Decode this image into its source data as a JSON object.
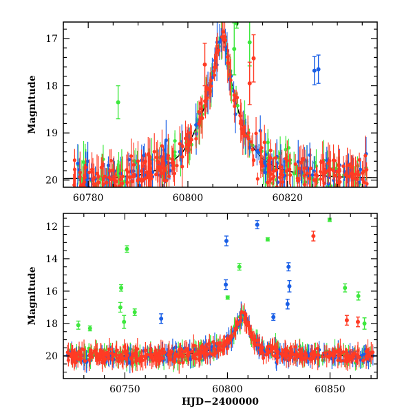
{
  "chart_data": [
    {
      "type": "scatter",
      "panel": "top",
      "title": "",
      "xlabel": "",
      "ylabel": "Magnitude",
      "xlim": [
        60775,
        60838
      ],
      "ylim": [
        20.15,
        16.65
      ],
      "y_inverted": true,
      "x_ticks": [
        60780,
        60800,
        60820
      ],
      "y_ticks": [
        17,
        18,
        19,
        20
      ],
      "grid": false,
      "legend": "none",
      "series": [
        {
          "color": "#1a5fe6",
          "style": "points-with-errorbars"
        },
        {
          "color": "#3ee83e",
          "style": "points-with-errorbars"
        },
        {
          "color": "#ff3b24",
          "style": "points-with-errorbars"
        },
        {
          "color": "#000000",
          "style": "line"
        }
      ],
      "model_curve": {
        "x": [
          60775,
          60780,
          60785,
          60790,
          60794,
          60797,
          60799,
          60801,
          60803,
          60804.5,
          60805.5,
          60806.2,
          60806.7,
          60807.4,
          60808.3,
          60809.5,
          60811,
          60813,
          60815,
          60818,
          60823,
          60830,
          60838
        ],
        "y": [
          19.97,
          19.96,
          19.95,
          19.9,
          19.78,
          19.6,
          19.4,
          19.05,
          18.55,
          18.0,
          17.55,
          17.15,
          16.9,
          17.1,
          17.7,
          18.3,
          18.85,
          19.3,
          19.55,
          19.75,
          19.88,
          19.93,
          19.95
        ]
      },
      "outliers": [
        {
          "series": 0,
          "x": 60825.4,
          "y": 17.68,
          "err": 0.3
        },
        {
          "series": 0,
          "x": 60826.2,
          "y": 17.65,
          "err": 0.3
        },
        {
          "series": 1,
          "x": 60809.3,
          "y": 17.22,
          "err": 0.55
        },
        {
          "series": 1,
          "x": 60812.4,
          "y": 17.08,
          "err": 0.5
        },
        {
          "series": 1,
          "x": 60809.8,
          "y": 16.68,
          "err": 0.1
        },
        {
          "series": 1,
          "x": 60786.0,
          "y": 18.35,
          "err": 0.35
        },
        {
          "series": 2,
          "x": 60803.4,
          "y": 17.55,
          "err": 0.45
        },
        {
          "series": 2,
          "x": 60813.2,
          "y": 17.42,
          "err": 0.5
        },
        {
          "series": 2,
          "x": 60812.4,
          "y": 17.95,
          "err": 0.45
        }
      ]
    },
    {
      "type": "scatter",
      "panel": "bottom",
      "title": "",
      "xlabel": "HJD−2400000",
      "ylabel": "Magnitude",
      "xlim": [
        60720,
        60873
      ],
      "ylim": [
        21.4,
        11.2
      ],
      "y_inverted": true,
      "x_ticks": [
        60750,
        60800,
        60850
      ],
      "y_ticks": [
        12,
        14,
        16,
        18,
        20
      ],
      "grid": false,
      "legend": "none",
      "series": [
        {
          "color": "#1a5fe6",
          "style": "points-with-errorbars"
        },
        {
          "color": "#3ee83e",
          "style": "points-with-errorbars"
        },
        {
          "color": "#ff3b24",
          "style": "points-with-errorbars"
        },
        {
          "color": "#000000",
          "style": "line"
        }
      ],
      "model_curve": {
        "x": [
          60720,
          60760,
          60780,
          60790,
          60797,
          60801,
          60804,
          60806,
          60807.5,
          60809,
          60811,
          60814,
          60818,
          60825,
          60840,
          60873
        ],
        "y": [
          20.0,
          20.0,
          19.9,
          19.7,
          19.4,
          19.0,
          18.4,
          17.8,
          17.4,
          17.8,
          18.5,
          19.2,
          19.6,
          19.85,
          19.95,
          20.0
        ]
      },
      "outliers": [
        {
          "series": 0,
          "x": 60799.5,
          "y": 12.9,
          "err": 0.3
        },
        {
          "series": 0,
          "x": 60814.5,
          "y": 11.9,
          "err": 0.25
        },
        {
          "series": 0,
          "x": 60799.2,
          "y": 15.6,
          "err": 0.3
        },
        {
          "series": 0,
          "x": 60829.8,
          "y": 14.5,
          "err": 0.25
        },
        {
          "series": 0,
          "x": 60830.2,
          "y": 15.7,
          "err": 0.35
        },
        {
          "series": 0,
          "x": 60822.4,
          "y": 17.6,
          "err": 0.2
        },
        {
          "series": 0,
          "x": 60767.7,
          "y": 17.7,
          "err": 0.3
        },
        {
          "series": 0,
          "x": 60829.3,
          "y": 16.8,
          "err": 0.3
        },
        {
          "series": 1,
          "x": 60751.0,
          "y": 13.4,
          "err": 0.2
        },
        {
          "series": 1,
          "x": 60748.2,
          "y": 15.8,
          "err": 0.2
        },
        {
          "series": 1,
          "x": 60805.8,
          "y": 14.5,
          "err": 0.2
        },
        {
          "series": 1,
          "x": 60819.6,
          "y": 12.8,
          "err": 0.1
        },
        {
          "series": 1,
          "x": 60849.8,
          "y": 11.6,
          "err": 0.1
        },
        {
          "series": 1,
          "x": 60857.3,
          "y": 15.8,
          "err": 0.25
        },
        {
          "series": 1,
          "x": 60863.8,
          "y": 16.3,
          "err": 0.25
        },
        {
          "series": 1,
          "x": 60800.1,
          "y": 16.4,
          "err": 0.1
        },
        {
          "series": 1,
          "x": 60727.3,
          "y": 18.1,
          "err": 0.25
        },
        {
          "series": 1,
          "x": 60733.0,
          "y": 18.3,
          "err": 0.15
        },
        {
          "series": 1,
          "x": 60747.8,
          "y": 17.0,
          "err": 0.3
        },
        {
          "series": 1,
          "x": 60754.8,
          "y": 17.3,
          "err": 0.2
        },
        {
          "series": 1,
          "x": 60749.6,
          "y": 17.9,
          "err": 0.4
        },
        {
          "series": 1,
          "x": 60866.8,
          "y": 18.0,
          "err": 0.35
        },
        {
          "series": 2,
          "x": 60841.9,
          "y": 12.6,
          "err": 0.3
        },
        {
          "series": 2,
          "x": 60858.2,
          "y": 17.8,
          "err": 0.3
        },
        {
          "series": 2,
          "x": 60863.6,
          "y": 17.9,
          "err": 0.3
        }
      ]
    }
  ]
}
